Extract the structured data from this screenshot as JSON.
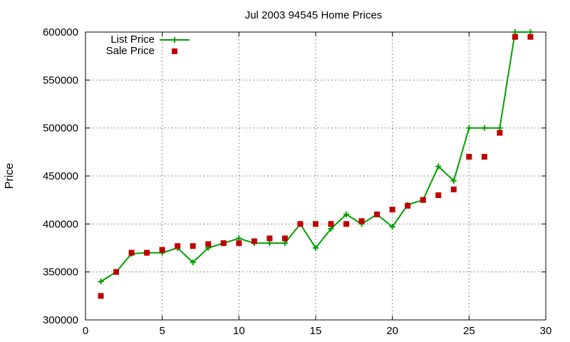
{
  "chart_data": {
    "type": "line",
    "title": "Jul 2003 94545 Home Prices",
    "xlabel": "",
    "ylabel": "Price",
    "xlim": [
      0,
      30
    ],
    "ylim": [
      300000,
      600000
    ],
    "x_ticks": [
      0,
      5,
      10,
      15,
      20,
      25,
      30
    ],
    "y_ticks": [
      300000,
      350000,
      400000,
      450000,
      500000,
      550000,
      600000
    ],
    "grid": true,
    "legend_position": "top-left",
    "series": [
      {
        "name": "List Price",
        "style": "line-with-plus-markers",
        "color": "#00a000",
        "x": [
          1,
          2,
          3,
          4,
          5,
          6,
          7,
          8,
          9,
          10,
          11,
          12,
          13,
          14,
          15,
          16,
          17,
          18,
          19,
          20,
          21,
          22,
          23,
          24,
          25,
          26,
          27,
          28,
          29
        ],
        "values": [
          340000,
          350000,
          369000,
          370000,
          370000,
          375000,
          360000,
          375000,
          380000,
          385000,
          380000,
          380000,
          380000,
          400000,
          375000,
          395000,
          410000,
          400000,
          410000,
          397000,
          420000,
          425000,
          460000,
          445000,
          500000,
          500000,
          500000,
          600000,
          600000
        ]
      },
      {
        "name": "Sale Price",
        "style": "square-markers",
        "color": "#c00000",
        "x": [
          1,
          2,
          3,
          4,
          5,
          6,
          7,
          8,
          9,
          10,
          11,
          12,
          13,
          14,
          15,
          16,
          17,
          18,
          19,
          20,
          21,
          22,
          23,
          24,
          25,
          26,
          27,
          28,
          29
        ],
        "values": [
          325000,
          350000,
          370000,
          370000,
          373000,
          377000,
          377000,
          379000,
          380000,
          380000,
          382000,
          385000,
          385000,
          400000,
          400000,
          400000,
          400000,
          403000,
          410000,
          415000,
          419000,
          425000,
          430000,
          436000,
          470000,
          470000,
          495000,
          595000,
          595000
        ]
      }
    ]
  }
}
